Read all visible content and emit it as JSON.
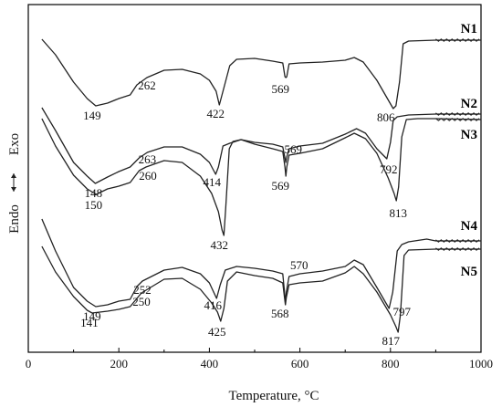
{
  "chart_data": {
    "type": "line",
    "xlabel": "Temperature,",
    "xlabel_unit": "°C",
    "ylabel": {
      "top": "Exo",
      "bottom": "Endo"
    },
    "xlim": [
      0,
      1000
    ],
    "xticks": [
      0,
      200,
      400,
      600,
      800,
      1000
    ],
    "yaxis_numeric": false,
    "grid": false,
    "series": [
      {
        "name": "N1",
        "points": [
          [
            30,
            43
          ],
          [
            60,
            60
          ],
          [
            100,
            90
          ],
          [
            130,
            108
          ],
          [
            149,
            116
          ],
          [
            175,
            113
          ],
          [
            200,
            108
          ],
          [
            225,
            104
          ],
          [
            240,
            93
          ],
          [
            262,
            85
          ],
          [
            300,
            77
          ],
          [
            340,
            76
          ],
          [
            380,
            81
          ],
          [
            400,
            88
          ],
          [
            415,
            100
          ],
          [
            422,
            115
          ],
          [
            430,
            100
          ],
          [
            445,
            72
          ],
          [
            460,
            65
          ],
          [
            500,
            64
          ],
          [
            540,
            67
          ],
          [
            562,
            69
          ],
          [
            567,
            84
          ],
          [
            569,
            85
          ],
          [
            571,
            84
          ],
          [
            576,
            70
          ],
          [
            600,
            69
          ],
          [
            650,
            68
          ],
          [
            700,
            66
          ],
          [
            720,
            63
          ],
          [
            740,
            68
          ],
          [
            770,
            88
          ],
          [
            806,
            119
          ],
          [
            812,
            116
          ],
          [
            820,
            90
          ],
          [
            828,
            48
          ],
          [
            840,
            45
          ],
          [
            900,
            44
          ],
          [
            1000,
            44
          ]
        ],
        "peaks": [
          {
            "x_label": "149",
            "x": 149
          },
          {
            "x_label": "262",
            "x": 262
          },
          {
            "x_label": "422",
            "x": 422
          },
          {
            "x_label": "569",
            "x": 569
          },
          {
            "x_label": "806",
            "x": 806
          }
        ]
      },
      {
        "name": "N2",
        "points": [
          [
            30,
            118
          ],
          [
            60,
            143
          ],
          [
            100,
            178
          ],
          [
            130,
            193
          ],
          [
            148,
            201
          ],
          [
            175,
            194
          ],
          [
            200,
            188
          ],
          [
            225,
            183
          ],
          [
            245,
            173
          ],
          [
            263,
            167
          ],
          [
            300,
            161
          ],
          [
            340,
            161
          ],
          [
            380,
            169
          ],
          [
            400,
            178
          ],
          [
            414,
            191
          ],
          [
            420,
            183
          ],
          [
            430,
            160
          ],
          [
            445,
            157
          ],
          [
            470,
            153
          ],
          [
            500,
            156
          ],
          [
            540,
            158
          ],
          [
            562,
            161
          ],
          [
            567,
            173
          ],
          [
            569,
            178
          ],
          [
            571,
            172
          ],
          [
            576,
            163
          ],
          [
            600,
            160
          ],
          [
            650,
            157
          ],
          [
            700,
            147
          ],
          [
            725,
            141
          ],
          [
            745,
            146
          ],
          [
            770,
            163
          ],
          [
            792,
            174
          ],
          [
            800,
            156
          ],
          [
            806,
            132
          ],
          [
            815,
            128
          ],
          [
            840,
            126
          ],
          [
            900,
            125
          ],
          [
            1000,
            125
          ]
        ],
        "peaks": [
          {
            "x_label": "148",
            "x": 148
          },
          {
            "x_label": "263",
            "x": 263
          },
          {
            "x_label": "414",
            "x": 414
          },
          {
            "x_label": "569",
            "x": 569
          },
          {
            "x_label": "792",
            "x": 792
          }
        ]
      },
      {
        "name": "N3",
        "points": [
          [
            30,
            130
          ],
          [
            60,
            160
          ],
          [
            100,
            192
          ],
          [
            130,
            207
          ],
          [
            150,
            213
          ],
          [
            175,
            207
          ],
          [
            200,
            204
          ],
          [
            225,
            200
          ],
          [
            245,
            187
          ],
          [
            260,
            183
          ],
          [
            300,
            176
          ],
          [
            340,
            178
          ],
          [
            380,
            193
          ],
          [
            405,
            212
          ],
          [
            420,
            232
          ],
          [
            428,
            252
          ],
          [
            432,
            258
          ],
          [
            436,
            228
          ],
          [
            444,
            163
          ],
          [
            452,
            155
          ],
          [
            470,
            153
          ],
          [
            500,
            158
          ],
          [
            540,
            163
          ],
          [
            562,
            166
          ],
          [
            567,
            183
          ],
          [
            569,
            193
          ],
          [
            571,
            183
          ],
          [
            576,
            170
          ],
          [
            600,
            168
          ],
          [
            650,
            163
          ],
          [
            700,
            151
          ],
          [
            720,
            146
          ],
          [
            745,
            152
          ],
          [
            770,
            168
          ],
          [
            795,
            195
          ],
          [
            808,
            212
          ],
          [
            813,
            220
          ],
          [
            818,
            205
          ],
          [
            825,
            150
          ],
          [
            835,
            131
          ],
          [
            860,
            130
          ],
          [
            900,
            130
          ],
          [
            1000,
            131
          ]
        ],
        "peaks": [
          {
            "x_label": "150",
            "x": 150
          },
          {
            "x_label": "260",
            "x": 260
          },
          {
            "x_label": "432",
            "x": 432
          },
          {
            "x_label": "569",
            "x": 569
          },
          {
            "x_label": "813",
            "x": 813
          }
        ]
      },
      {
        "name": "N4",
        "points": [
          [
            30,
            240
          ],
          [
            60,
            275
          ],
          [
            100,
            315
          ],
          [
            130,
            330
          ],
          [
            149,
            336
          ],
          [
            175,
            334
          ],
          [
            200,
            330
          ],
          [
            225,
            328
          ],
          [
            240,
            314
          ],
          [
            252,
            308
          ],
          [
            300,
            296
          ],
          [
            340,
            293
          ],
          [
            380,
            300
          ],
          [
            400,
            310
          ],
          [
            416,
            327
          ],
          [
            424,
            312
          ],
          [
            435,
            296
          ],
          [
            460,
            292
          ],
          [
            500,
            294
          ],
          [
            540,
            297
          ],
          [
            562,
            300
          ],
          [
            566,
            320
          ],
          [
            568,
            332
          ],
          [
            570,
            320
          ],
          [
            576,
            303
          ],
          [
            600,
            300
          ],
          [
            650,
            297
          ],
          [
            700,
            292
          ],
          [
            720,
            285
          ],
          [
            740,
            290
          ],
          [
            770,
            315
          ],
          [
            797,
            338
          ],
          [
            805,
            320
          ],
          [
            815,
            275
          ],
          [
            825,
            268
          ],
          [
            840,
            265
          ],
          [
            880,
            262
          ],
          [
            900,
            264
          ],
          [
            1000,
            264
          ]
        ],
        "peaks": [
          {
            "x_label": "149",
            "x": 149
          },
          {
            "x_label": "252",
            "x": 252
          },
          {
            "x_label": "416",
            "x": 416
          },
          {
            "x_label": "568",
            "x": 568
          },
          {
            "x_label": "570",
            "x": 570
          },
          {
            "x_label": "797",
            "x": 797
          }
        ]
      },
      {
        "name": "N5",
        "points": [
          [
            30,
            270
          ],
          [
            60,
            298
          ],
          [
            100,
            325
          ],
          [
            130,
            340
          ],
          [
            141,
            343
          ],
          [
            175,
            341
          ],
          [
            200,
            339
          ],
          [
            225,
            336
          ],
          [
            245,
            324
          ],
          [
            250,
            321
          ],
          [
            300,
            306
          ],
          [
            340,
            305
          ],
          [
            380,
            317
          ],
          [
            405,
            332
          ],
          [
            418,
            342
          ],
          [
            425,
            352
          ],
          [
            432,
            338
          ],
          [
            440,
            308
          ],
          [
            460,
            298
          ],
          [
            500,
            302
          ],
          [
            540,
            305
          ],
          [
            562,
            310
          ],
          [
            566,
            326
          ],
          [
            568,
            334
          ],
          [
            570,
            326
          ],
          [
            576,
            312
          ],
          [
            600,
            310
          ],
          [
            650,
            308
          ],
          [
            700,
            299
          ],
          [
            720,
            292
          ],
          [
            740,
            300
          ],
          [
            770,
            320
          ],
          [
            800,
            345
          ],
          [
            812,
            358
          ],
          [
            817,
            364
          ],
          [
            822,
            345
          ],
          [
            830,
            280
          ],
          [
            840,
            274
          ],
          [
            900,
            273
          ],
          [
            1000,
            273
          ]
        ],
        "peaks": [
          {
            "x_label": "141",
            "x": 141
          },
          {
            "x_label": "250",
            "x": 250
          },
          {
            "x_label": "425",
            "x": 425
          },
          {
            "x_label": "817",
            "x": 817
          }
        ]
      }
    ]
  }
}
